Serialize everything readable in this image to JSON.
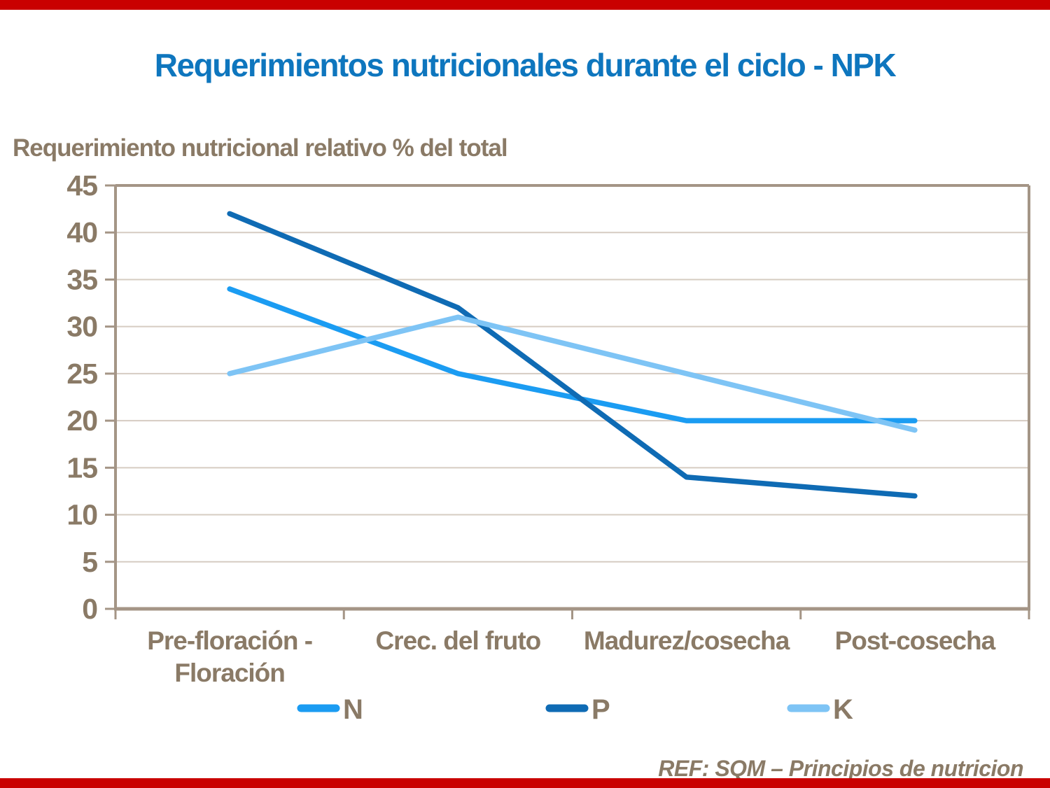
{
  "page": {
    "title": "Requerimientos nutricionales durante el ciclo - NPK",
    "reference": "REF: SQM – Principios de nutricion"
  },
  "colors": {
    "accent_red": "#C90000",
    "title_blue": "#0E76BE",
    "text_brown": "#8A7A66",
    "axis_tan": "#A49586",
    "grid_tan": "#D6CCC2",
    "series_n_blue": "#1B9CF2",
    "series_p_blue": "#0F6BB4",
    "series_k_blue": "#7EC4F5"
  },
  "chart_data": {
    "type": "line",
    "title": "Requerimientos nutricionales durante el ciclo - NPK",
    "ylabel": "Requerimiento nutricional relativo % del total",
    "xlabel": "",
    "categories": [
      "Pre-floración - Floración",
      "Crec. del fruto",
      "Madurez/cosecha",
      "Post-cosecha"
    ],
    "category_label_lines": [
      [
        "Pre-floración -",
        "Floración"
      ],
      [
        "Crec. del fruto"
      ],
      [
        "Madurez/cosecha"
      ],
      [
        "Post-cosecha"
      ]
    ],
    "series": [
      {
        "name": "N",
        "color": "#1B9CF2",
        "values": [
          34,
          25,
          20,
          20
        ]
      },
      {
        "name": "P",
        "color": "#0F6BB4",
        "values": [
          42,
          32,
          14,
          12
        ]
      },
      {
        "name": "K",
        "color": "#7EC4F5",
        "values": [
          25,
          31,
          25,
          19
        ]
      }
    ],
    "ylim": [
      0,
      45
    ],
    "ytick_step": 5,
    "grid": true,
    "legend_position": "bottom"
  }
}
